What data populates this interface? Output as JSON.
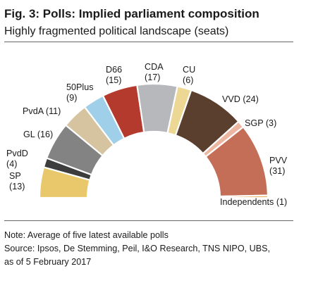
{
  "header": {
    "title": "Fig. 3: Polls: Implied parliament composition",
    "subtitle": "Highly fragmented political landscape (seats)"
  },
  "chart_data": {
    "type": "pie",
    "variant": "semicircle-donut",
    "series": [
      {
        "label": "SP",
        "value": 13,
        "color": "#e8c86a"
      },
      {
        "label": "PvdD",
        "value": 4,
        "color": "#3d3d3d"
      },
      {
        "label": "GL",
        "value": 16,
        "color": "#838383"
      },
      {
        "label": "PvdA",
        "value": 11,
        "color": "#d6c3a0"
      },
      {
        "label": "50Plus",
        "value": 9,
        "color": "#9fcfe9"
      },
      {
        "label": "D66",
        "value": 15,
        "color": "#b53a2e"
      },
      {
        "label": "CDA",
        "value": 17,
        "color": "#b7b8bb"
      },
      {
        "label": "CU",
        "value": 6,
        "color": "#ecd794"
      },
      {
        "label": "VVD",
        "value": 24,
        "color": "#5b3f2e"
      },
      {
        "label": "SGP",
        "value": 3,
        "color": "#ecb6a0"
      },
      {
        "label": "PVV",
        "value": 31,
        "color": "#c46e57"
      },
      {
        "label": "Independents",
        "value": 1,
        "color": "#e7a33e"
      }
    ],
    "labels": [
      {
        "name": "SP",
        "value": "(13)"
      },
      {
        "name": "PvdD",
        "value": "(4)"
      },
      {
        "name": "GL (16)",
        "value": ""
      },
      {
        "name": "PvdA (11)",
        "value": ""
      },
      {
        "name": "50Plus",
        "value": "(9)"
      },
      {
        "name": "D66",
        "value": "(15)"
      },
      {
        "name": "CDA",
        "value": "(17)"
      },
      {
        "name": "CU",
        "value": "(6)"
      },
      {
        "name": "VVD (24)",
        "value": ""
      },
      {
        "name": "SGP (3)",
        "value": ""
      },
      {
        "name": "PVV",
        "value": "(31)"
      },
      {
        "name": "Independents (1)",
        "value": ""
      }
    ]
  },
  "footer": {
    "note": "Note: Average of five latest available polls",
    "source_line1": "Source: Ipsos, De Stemming, Peil, I&O Research, TNS NIPO, UBS,",
    "source_line2": "as of 5 February 2017"
  }
}
